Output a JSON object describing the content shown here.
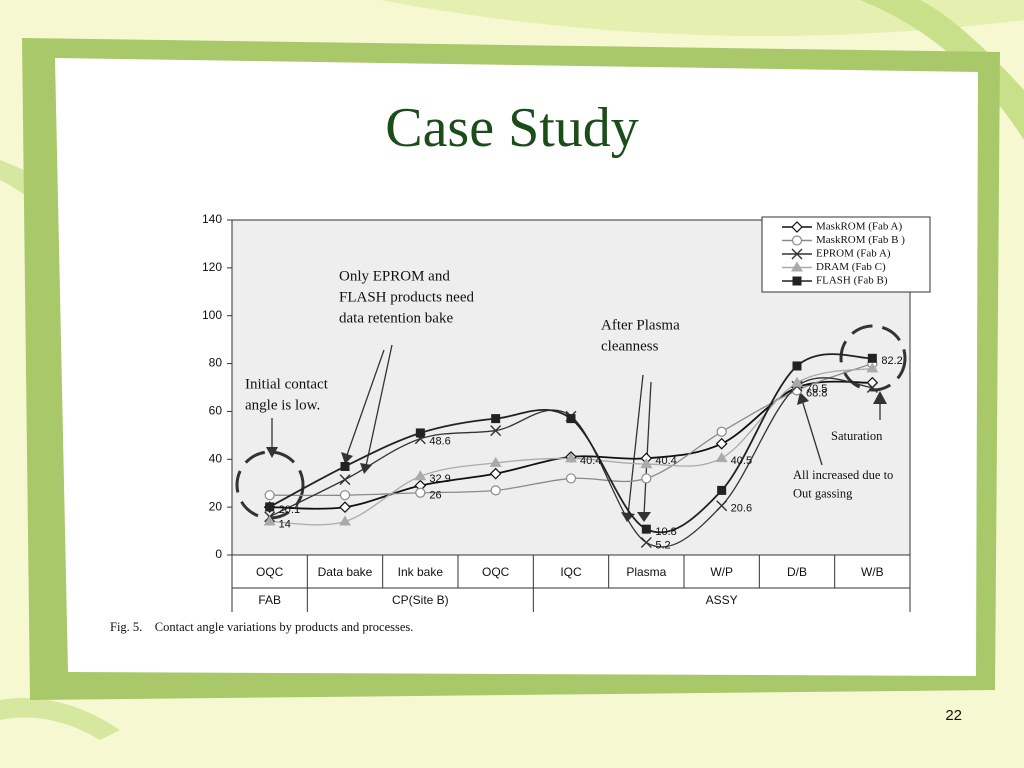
{
  "title": "Case Study",
  "page_number": "22",
  "chart_data": {
    "type": "line",
    "categories": [
      "OQC",
      "Data bake",
      "Ink bake",
      "OQC",
      "IQC",
      "Plasma",
      "W/P",
      "D/B",
      "W/B"
    ],
    "groups": [
      {
        "label": "FAB",
        "span": 1
      },
      {
        "label": "CP(Site B)",
        "span": 3
      },
      {
        "label": "ASSY",
        "span": 5
      }
    ],
    "ylim": [
      0,
      140
    ],
    "yticks": [
      0,
      20,
      40,
      60,
      80,
      100,
      120,
      140
    ],
    "series": [
      {
        "name": "MaskROM (Fab A)",
        "color": "#111111",
        "marker": "diamond",
        "values": [
          20,
          20,
          29,
          34,
          41,
          40.4,
          46.5,
          70,
          72
        ],
        "value_labels": [
          null,
          null,
          null,
          null,
          null,
          "40.4",
          null,
          null,
          null
        ]
      },
      {
        "name": "MaskROM (Fab B )",
        "color": "#8a8a8a",
        "marker": "circle",
        "values": [
          25,
          25,
          26,
          27,
          32,
          32,
          51.5,
          68.8,
          80
        ],
        "value_labels": [
          null,
          null,
          "26",
          null,
          null,
          null,
          null,
          "68.8",
          null
        ]
      },
      {
        "name": "EPROM (Fab A)",
        "color": "#333333",
        "marker": "x",
        "values": [
          16,
          31.5,
          48.6,
          52,
          58,
          5.2,
          20.6,
          70.5,
          70
        ],
        "value_labels": [
          null,
          null,
          "48.6",
          null,
          null,
          "5.2",
          "20.6",
          "70.5",
          null
        ]
      },
      {
        "name": "DRAM (Fab C)",
        "color": "#aaaaaa",
        "marker": "triangle",
        "values": [
          14,
          14,
          32.9,
          38.5,
          40.4,
          38,
          40.5,
          72,
          78
        ],
        "value_labels": [
          "14",
          null,
          "32.9",
          null,
          "40.4",
          null,
          "40.5",
          null,
          null
        ]
      },
      {
        "name": "FLASH (Fab B)",
        "color": "#222222",
        "marker": "square",
        "values": [
          20.1,
          37,
          51,
          57,
          57,
          10.8,
          27,
          79,
          82.2
        ],
        "value_labels": [
          "20.1",
          null,
          null,
          null,
          null,
          "10.8",
          null,
          null,
          "82.2"
        ]
      }
    ],
    "annotations": [
      {
        "lines": [
          "Only EPROM and",
          "FLASH products need",
          "data retention bake"
        ]
      },
      {
        "lines": [
          "Initial contact",
          "angle is low."
        ]
      },
      {
        "lines": [
          "After Plasma",
          "cleanness"
        ]
      },
      {
        "lines": [
          "Saturation"
        ]
      },
      {
        "lines": [
          "All increased due to",
          "Out gassing"
        ]
      }
    ],
    "caption": "Fig. 5.    Contact angle variations by products and processes."
  }
}
